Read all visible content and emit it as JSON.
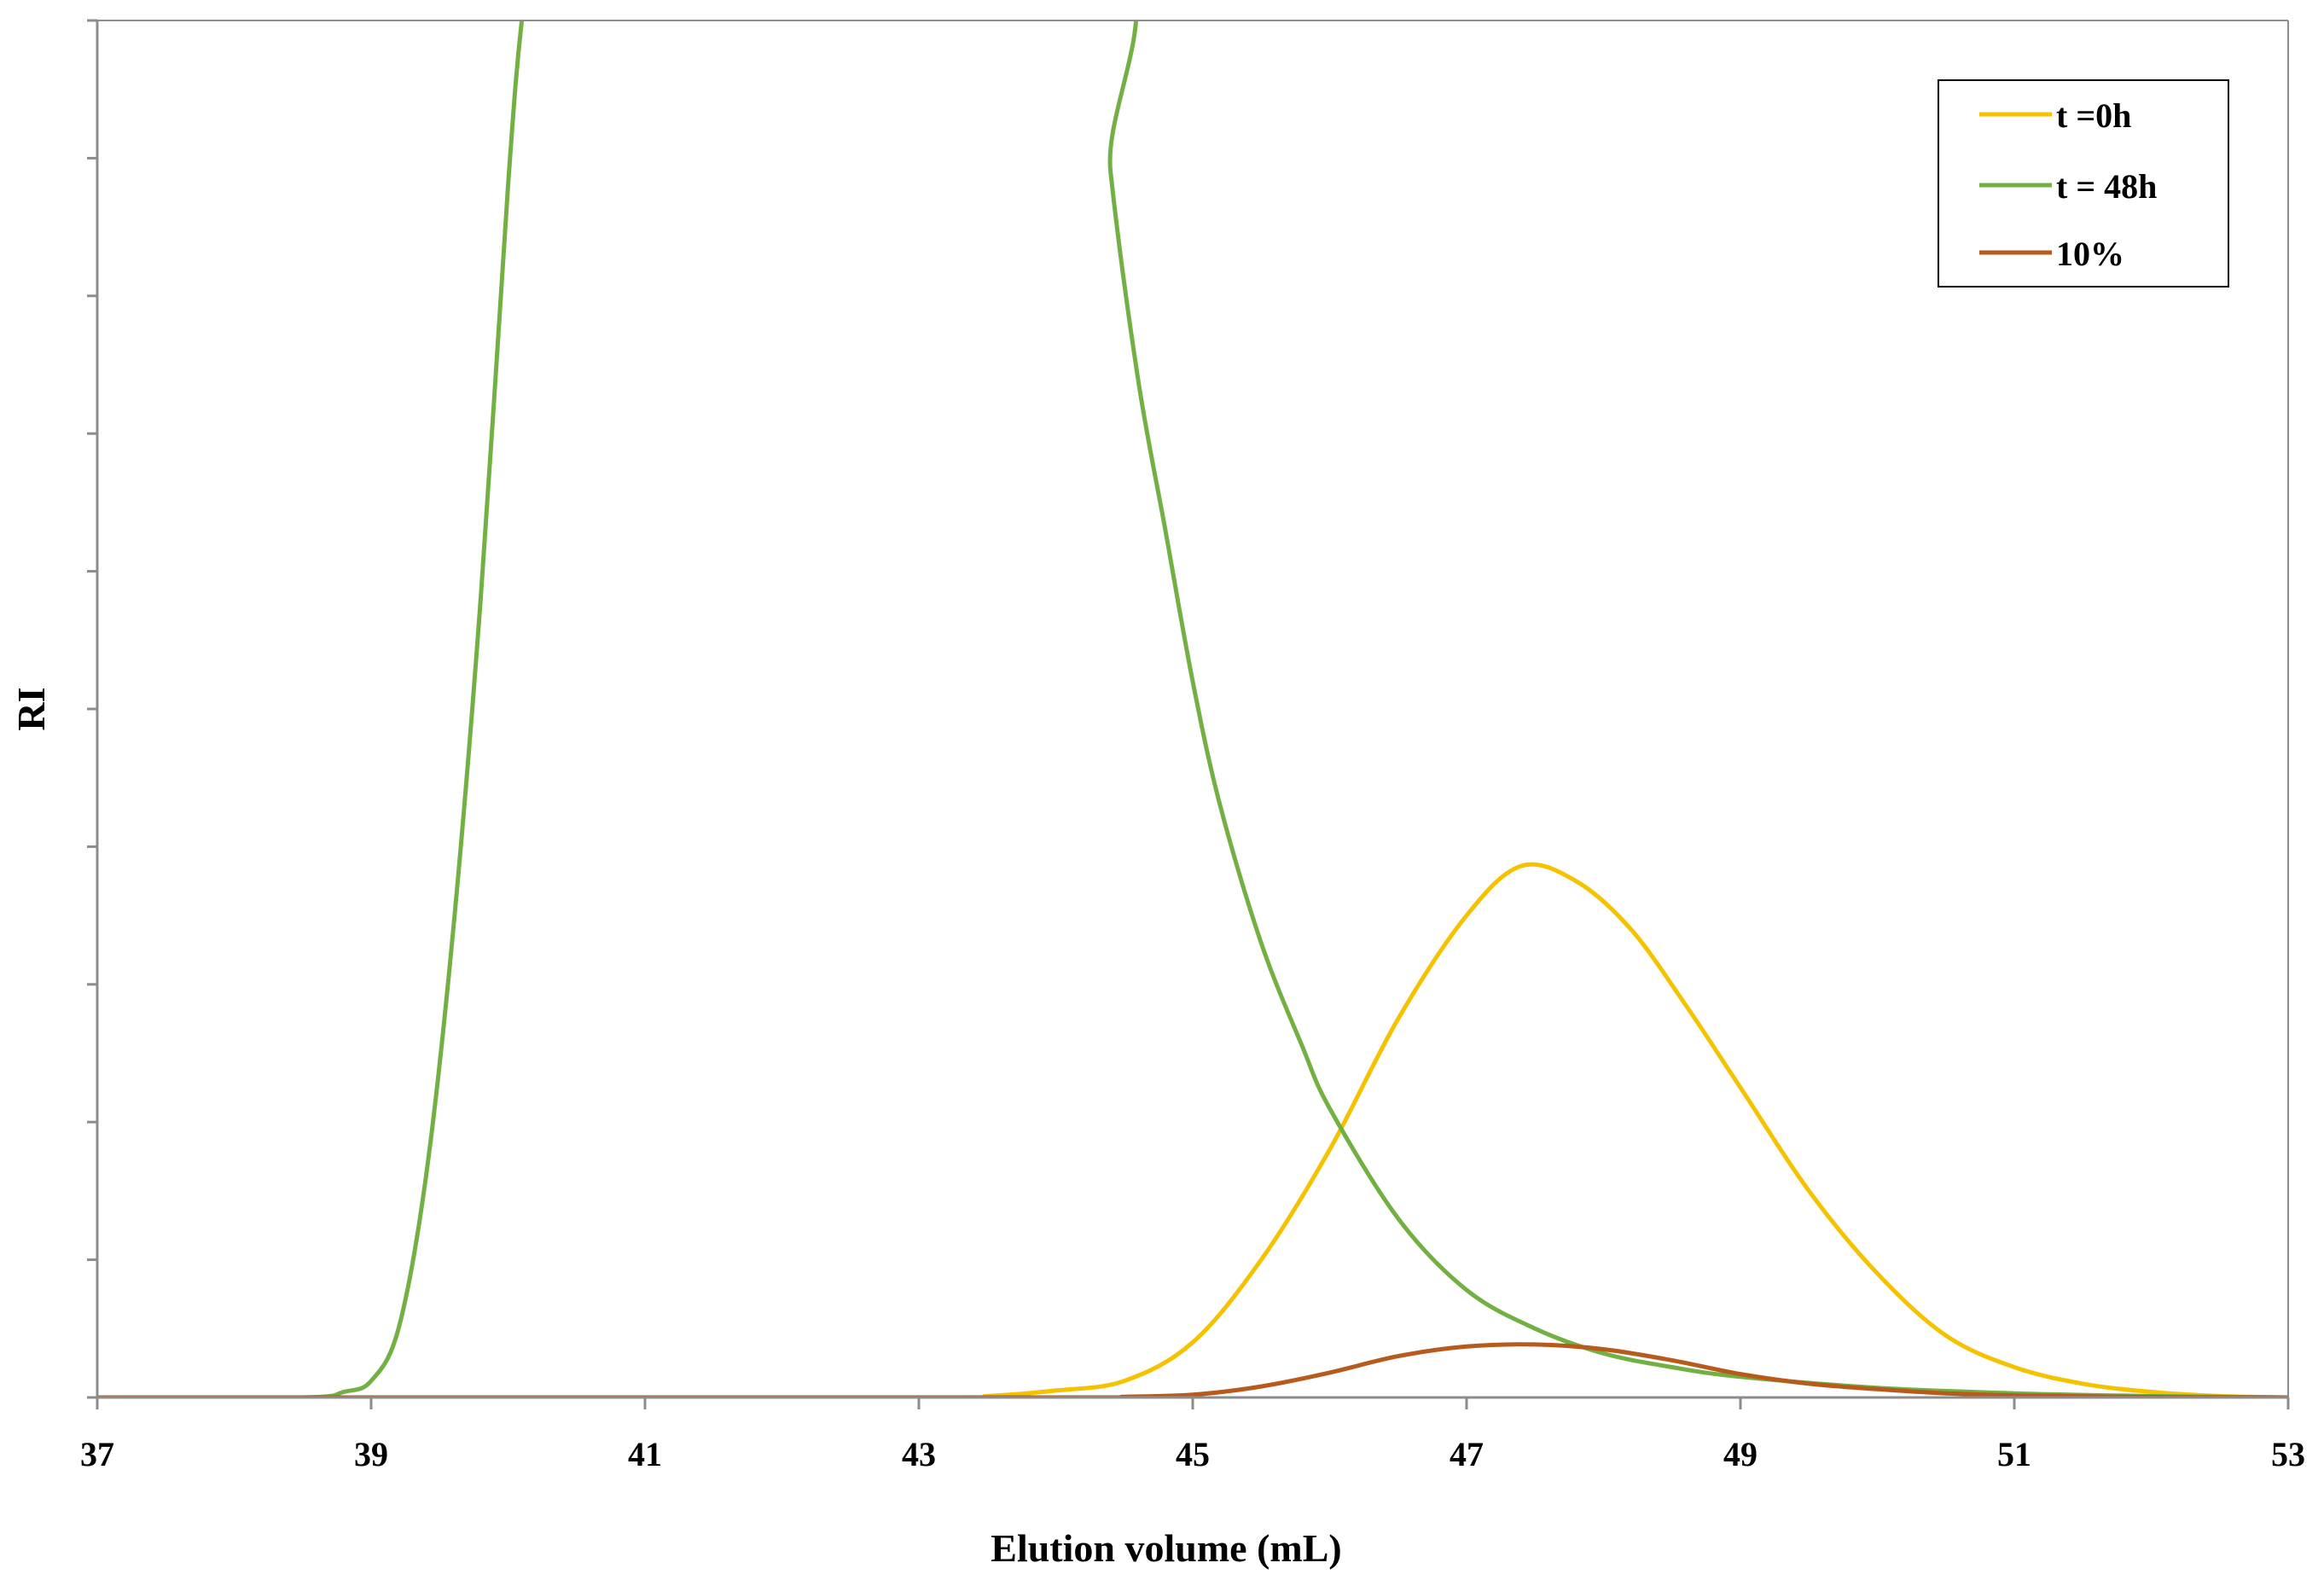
{
  "chart_data": {
    "type": "line",
    "title": "",
    "xlabel": "Elution volume (mL)",
    "ylabel": "RI",
    "xlim": [
      37,
      53
    ],
    "ylim": [
      0,
      10
    ],
    "x_ticks": [
      "37",
      "39",
      "41",
      "43",
      "45",
      "47",
      "49",
      "51",
      "53"
    ],
    "y_tick_count": 10,
    "grid": false,
    "legend_position": "top-right",
    "series": [
      {
        "name": "t =0h",
        "color": "#F5C200",
        "x": [
          37,
          43,
          43.5,
          44,
          44.5,
          45,
          45.5,
          46,
          46.5,
          47,
          47.4,
          47.8,
          48.2,
          48.6,
          49,
          49.5,
          50,
          50.5,
          51,
          51.5,
          52,
          52.5,
          53
        ],
        "y": [
          0,
          0,
          0.01,
          0.05,
          0.12,
          0.4,
          1.0,
          1.8,
          2.75,
          3.5,
          3.86,
          3.75,
          3.4,
          2.85,
          2.25,
          1.5,
          0.9,
          0.45,
          0.22,
          0.1,
          0.04,
          0.01,
          0
        ]
      },
      {
        "name": "t = 48h",
        "color": "#72B043",
        "x": [
          37,
          38.5,
          38.8,
          39,
          39.2,
          39.4,
          39.6,
          39.8,
          40,
          40.1,
          40.2,
          44.25,
          44.4,
          44.6,
          44.8,
          45,
          45.2,
          45.5,
          45.8,
          46,
          46.5,
          47,
          47.5,
          48,
          48.5,
          49,
          50,
          51,
          52,
          53
        ],
        "y": [
          0,
          0,
          0.04,
          0.12,
          0.5,
          1.6,
          3.4,
          5.8,
          8.8,
          10.0,
          10.6,
          10.6,
          8.9,
          7.4,
          6.3,
          5.2,
          4.3,
          3.3,
          2.55,
          2.1,
          1.3,
          0.78,
          0.5,
          0.32,
          0.22,
          0.15,
          0.07,
          0.03,
          0.01,
          0
        ]
      },
      {
        "name": "10%",
        "color": "#B85A1C",
        "x": [
          37,
          44,
          44.5,
          45,
          45.5,
          46,
          46.5,
          47,
          47.5,
          48,
          48.5,
          49,
          49.5,
          50,
          50.5,
          51,
          52,
          53
        ],
        "y": [
          0,
          0,
          0.005,
          0.02,
          0.08,
          0.18,
          0.3,
          0.37,
          0.385,
          0.35,
          0.27,
          0.17,
          0.1,
          0.06,
          0.03,
          0.015,
          0.003,
          0
        ]
      }
    ]
  }
}
